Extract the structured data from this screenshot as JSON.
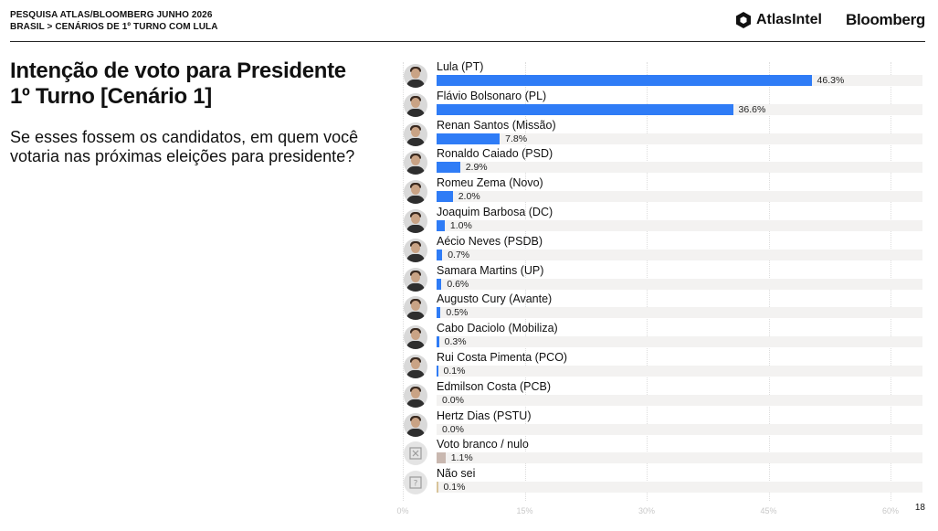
{
  "header": {
    "line1": "PESQUISA ATLAS/BLOOMBERG JUNHO 2026",
    "line2": "BRASIL > CENÁRIOS DE 1º TURNO COM LULA",
    "brand_atlas": "AtlasIntel",
    "brand_bloomberg": "Bloomberg"
  },
  "title_line1": "Intenção de voto para Presidente",
  "title_line2": "1º Turno [Cenário 1]",
  "question": "Se esses fossem os candidatos, em quem você votaria nas próximas eleições para presidente?",
  "page_number": "18",
  "colors": {
    "candidate_bar": "#2f7cf6",
    "blank_null_bar": "#c9b8b0",
    "dont_know_bar": "#d8c49a",
    "track": "#f3f2f1"
  },
  "chart_data": {
    "type": "bar",
    "orientation": "horizontal",
    "categories": [
      "Lula (PT)",
      "Flávio Bolsonaro (PL)",
      "Renan Santos (Missão)",
      "Ronaldo Caiado (PSD)",
      "Romeu Zema (Novo)",
      "Joaquim Barbosa (DC)",
      "Aécio Neves (PSDB)",
      "Samara Martins (UP)",
      "Augusto Cury (Avante)",
      "Cabo Daciolo (Mobiliza)",
      "Rui Costa Pimenta (PCO)",
      "Edmilson Costa (PCB)",
      "Hertz Dias (PSTU)",
      "Voto branco / nulo",
      "Não sei"
    ],
    "values": [
      46.3,
      36.6,
      7.8,
      2.9,
      2.0,
      1.0,
      0.7,
      0.6,
      0.5,
      0.3,
      0.1,
      0.0,
      0.0,
      1.1,
      0.1
    ],
    "value_labels": [
      "46.3%",
      "36.6%",
      "7.8%",
      "2.9%",
      "2.0%",
      "1.0%",
      "0.7%",
      "0.6%",
      "0.5%",
      "0.3%",
      "0.1%",
      "0.0%",
      "0.0%",
      "1.1%",
      "0.1%"
    ],
    "bar_kind": [
      "candidate",
      "candidate",
      "candidate",
      "candidate",
      "candidate",
      "candidate",
      "candidate",
      "candidate",
      "candidate",
      "candidate",
      "candidate",
      "candidate",
      "candidate",
      "blank",
      "dontknow"
    ],
    "avatar_kind": [
      "photo",
      "photo",
      "photo",
      "photo",
      "photo",
      "photo",
      "photo",
      "photo",
      "photo",
      "photo",
      "photo",
      "photo",
      "photo",
      "x-box-icon",
      "question-box-icon"
    ],
    "xlim": [
      0,
      60
    ],
    "xticks": [
      "0%",
      "15%",
      "30%",
      "45%",
      "60%"
    ],
    "xtick_values": [
      0,
      15,
      30,
      45,
      60
    ],
    "grid": true
  }
}
